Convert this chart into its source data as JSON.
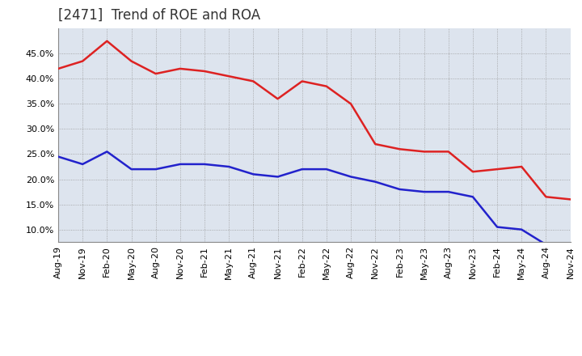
{
  "title": "[2471]  Trend of ROE and ROA",
  "xtick_labels": [
    "Aug-19",
    "Nov-19",
    "Feb-20",
    "May-20",
    "Aug-20",
    "Nov-20",
    "Feb-21",
    "May-21",
    "Aug-21",
    "Nov-21",
    "Feb-22",
    "May-22",
    "Aug-22",
    "Nov-22",
    "Feb-23",
    "May-23",
    "Aug-23",
    "Nov-23",
    "Feb-24",
    "May-24",
    "Aug-24",
    "Nov-24"
  ],
  "ROE": [
    42.0,
    43.5,
    47.5,
    43.5,
    41.0,
    42.0,
    41.5,
    40.5,
    39.5,
    36.0,
    39.5,
    38.5,
    35.0,
    27.0,
    26.0,
    25.5,
    25.5,
    21.5,
    22.0,
    22.5,
    16.5,
    16.0
  ],
  "ROA": [
    24.5,
    23.0,
    25.5,
    22.0,
    22.0,
    23.0,
    23.0,
    22.5,
    21.0,
    20.5,
    22.0,
    22.0,
    20.5,
    19.5,
    18.0,
    17.5,
    17.5,
    16.5,
    10.5,
    10.0,
    7.0,
    7.0
  ],
  "ylim_min": 7.5,
  "ylim_max": 50.0,
  "roe_color": "#dd2222",
  "roa_color": "#2222cc",
  "grid_color": "#999999",
  "bg_color": "#dde4ee",
  "line_width": 1.8,
  "title_fontsize": 12,
  "tick_fontsize": 8,
  "legend_fontsize": 10,
  "yticks": [
    10.0,
    15.0,
    20.0,
    25.0,
    30.0,
    35.0,
    40.0,
    45.0
  ]
}
